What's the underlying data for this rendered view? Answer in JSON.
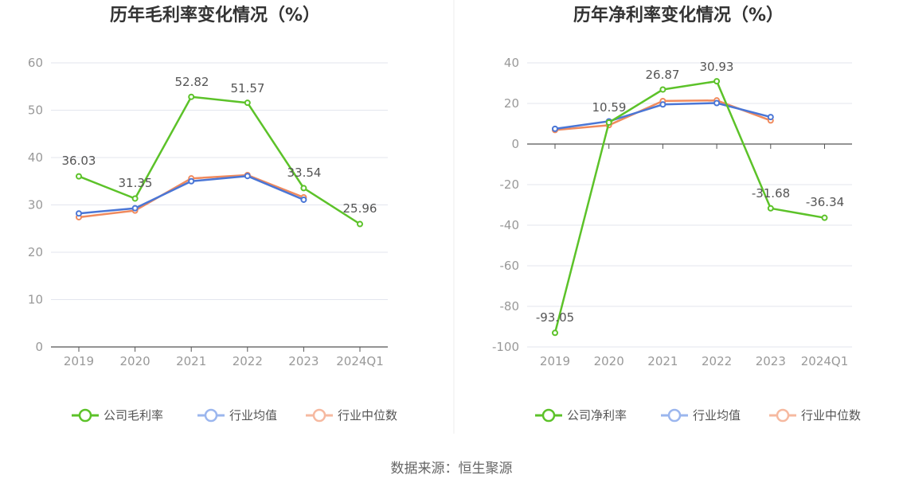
{
  "source": "数据来源：恒生聚源",
  "colors": {
    "company": "#5cc229",
    "industry_avg": "#4a76d6",
    "industry_median": "#f08a5d",
    "legend_avg": "#9bb6ee",
    "legend_median": "#f6b9a0",
    "grid": "#e3e6ee",
    "axis": "#555555"
  },
  "chart_data": [
    {
      "type": "line",
      "title": "历年毛利率变化情况（%）",
      "categories": [
        "2019",
        "2020",
        "2021",
        "2022",
        "2023",
        "2024Q1"
      ],
      "ylim": [
        0,
        60
      ],
      "yticks": [
        0,
        10,
        20,
        30,
        40,
        50,
        60
      ],
      "grid": true,
      "legend_position": "bottom",
      "series": [
        {
          "name": "公司毛利率",
          "key": "company",
          "values": [
            36.03,
            31.35,
            52.82,
            51.57,
            33.54,
            25.96
          ],
          "labels": [
            "36.03",
            "31.35",
            "52.82",
            "51.57",
            "33.54",
            "25.96"
          ]
        },
        {
          "name": "行业均值",
          "key": "industry_avg",
          "values": [
            28.2,
            29.3,
            35.0,
            36.1,
            31.1,
            null
          ]
        },
        {
          "name": "行业中位数",
          "key": "industry_median",
          "values": [
            27.4,
            28.8,
            35.6,
            36.3,
            31.6,
            null
          ]
        }
      ]
    },
    {
      "type": "line",
      "title": "历年净利率变化情况（%）",
      "categories": [
        "2019",
        "2020",
        "2021",
        "2022",
        "2023",
        "2024Q1"
      ],
      "ylim": [
        -100,
        40
      ],
      "yticks": [
        -100,
        -80,
        -60,
        -40,
        -20,
        0,
        20,
        40
      ],
      "grid": true,
      "legend_position": "bottom",
      "series": [
        {
          "name": "公司净利率",
          "key": "company",
          "values": [
            -93.05,
            10.59,
            26.87,
            30.93,
            -31.68,
            -36.34
          ],
          "labels": [
            "-93.05",
            "10.59",
            "26.87",
            "30.93",
            "-31.68",
            "-36.34"
          ]
        },
        {
          "name": "行业均值",
          "key": "industry_avg",
          "values": [
            7.5,
            11.2,
            19.5,
            20.2,
            13.3,
            null
          ]
        },
        {
          "name": "行业中位数",
          "key": "industry_median",
          "values": [
            6.9,
            9.3,
            21.2,
            21.5,
            11.6,
            null
          ]
        }
      ]
    }
  ]
}
